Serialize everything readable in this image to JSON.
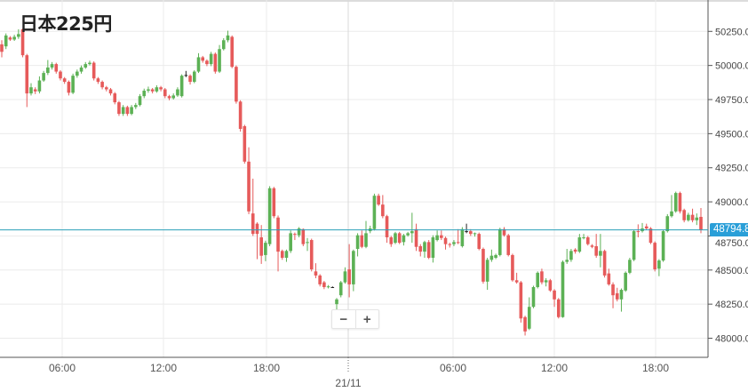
{
  "title": "日本225円",
  "zoom": {
    "minus_label": "−",
    "plus_label": "+"
  },
  "current_price": {
    "label": "48794.8",
    "color": "#2a9fd8"
  },
  "colors": {
    "up": "#5cb155",
    "down": "#e65a5a",
    "grid": "#ebebeb",
    "doji": "#222222"
  },
  "chart_data": {
    "type": "candlestick",
    "title": "日本225円",
    "ylim": [
      47860,
      50480
    ],
    "yticks": [
      48000,
      48250,
      48500,
      48750,
      49000,
      49250,
      49500,
      49750,
      50000,
      50250
    ],
    "ytick_labels": [
      "48000.0",
      "48250.0",
      "48500.0",
      "48750.0",
      "49000.0",
      "49250.0",
      "49500.0",
      "49750.0",
      "50000.0",
      "50250.0"
    ],
    "xtick_labels": [
      "06:00",
      "12:00",
      "18:00",
      "21/11",
      "06:00",
      "12:00",
      "18:00"
    ],
    "grid": true,
    "current_price": 48794.8,
    "candles_ohlc": [
      [
        50155,
        50185,
        50060,
        50100
      ],
      [
        50140,
        50235,
        50120,
        50220
      ],
      [
        50205,
        50215,
        50180,
        50190
      ],
      [
        50190,
        50225,
        50180,
        50210
      ],
      [
        50210,
        50265,
        50195,
        50230
      ],
      [
        50265,
        50270,
        50060,
        50075
      ],
      [
        50075,
        50085,
        49695,
        49795
      ],
      [
        49795,
        49870,
        49780,
        49840
      ],
      [
        49825,
        49840,
        49790,
        49810
      ],
      [
        49810,
        49920,
        49795,
        49890
      ],
      [
        49890,
        49960,
        49880,
        49945
      ],
      [
        49945,
        50040,
        49930,
        49985
      ],
      [
        49985,
        50025,
        49970,
        50010
      ],
      [
        50010,
        50020,
        49940,
        49955
      ],
      [
        49955,
        49965,
        49890,
        49905
      ],
      [
        49905,
        49915,
        49865,
        49880
      ],
      [
        49880,
        49890,
        49780,
        49800
      ],
      [
        49800,
        49940,
        49790,
        49925
      ],
      [
        49925,
        49970,
        49910,
        49955
      ],
      [
        49955,
        50000,
        49940,
        49985
      ],
      [
        49985,
        50025,
        49975,
        50010
      ],
      [
        50010,
        50035,
        50000,
        50020
      ],
      [
        50020,
        50030,
        49890,
        49905
      ],
      [
        49905,
        49915,
        49865,
        49880
      ],
      [
        49880,
        49890,
        49825,
        49840
      ],
      [
        49840,
        49850,
        49810,
        49825
      ],
      [
        49825,
        49835,
        49780,
        49795
      ],
      [
        49795,
        49805,
        49715,
        49730
      ],
      [
        49730,
        49740,
        49630,
        49645
      ],
      [
        49645,
        49710,
        49630,
        49695
      ],
      [
        49695,
        49705,
        49630,
        49645
      ],
      [
        49645,
        49710,
        49635,
        49695
      ],
      [
        49695,
        49725,
        49680,
        49710
      ],
      [
        49710,
        49790,
        49700,
        49775
      ],
      [
        49775,
        49830,
        49760,
        49815
      ],
      [
        49815,
        49845,
        49800,
        49825
      ],
      [
        49825,
        49835,
        49795,
        49810
      ],
      [
        49810,
        49855,
        49800,
        49840
      ],
      [
        49840,
        49850,
        49810,
        49825
      ],
      [
        49825,
        49835,
        49760,
        49775
      ],
      [
        49775,
        49785,
        49745,
        49760
      ],
      [
        49760,
        49795,
        49750,
        49780
      ],
      [
        49780,
        49840,
        49770,
        49825
      ],
      [
        49775,
        49935,
        49765,
        49925
      ],
      [
        49930,
        49960,
        49915,
        49930
      ],
      [
        49925,
        49935,
        49860,
        49880
      ],
      [
        49880,
        49965,
        49870,
        49955
      ],
      [
        49955,
        50090,
        49945,
        50060
      ],
      [
        50060,
        50070,
        50020,
        50035
      ],
      [
        50035,
        50045,
        49995,
        50010
      ],
      [
        50010,
        50100,
        49995,
        50085
      ],
      [
        50085,
        50095,
        49940,
        49955
      ],
      [
        49955,
        50150,
        49945,
        50120
      ],
      [
        50120,
        50200,
        50110,
        50185
      ],
      [
        50185,
        50255,
        50170,
        50220
      ],
      [
        50210,
        50220,
        49980,
        49990
      ],
      [
        49990,
        50000,
        49720,
        49735
      ],
      [
        49735,
        49745,
        49515,
        49535
      ],
      [
        49555,
        49565,
        49280,
        49295
      ],
      [
        49295,
        49400,
        48910,
        48930
      ],
      [
        48915,
        49170,
        48750,
        48765
      ],
      [
        48840,
        48850,
        48580,
        48765
      ],
      [
        48740,
        48830,
        48545,
        48605
      ],
      [
        48610,
        48715,
        48565,
        48700
      ],
      [
        48690,
        49115,
        48675,
        49100
      ],
      [
        49100,
        49110,
        48880,
        48895
      ],
      [
        48885,
        48900,
        48490,
        48635
      ],
      [
        48640,
        48650,
        48575,
        48590
      ],
      [
        48590,
        48650,
        48560,
        48640
      ],
      [
        48640,
        48790,
        48625,
        48770
      ],
      [
        48765,
        48775,
        48720,
        48760
      ],
      [
        48755,
        48815,
        48740,
        48805
      ],
      [
        48800,
        48805,
        48675,
        48690
      ],
      [
        48700,
        48735,
        48640,
        48705
      ],
      [
        48720,
        48730,
        48490,
        48505
      ],
      [
        48490,
        48550,
        48440,
        48460
      ],
      [
        48460,
        48470,
        48380,
        48395
      ],
      [
        48410,
        48420,
        48360,
        48375
      ],
      [
        48375,
        48390,
        48365,
        48380
      ],
      [
        48375,
        48380,
        48370,
        48375
      ],
      [
        48250,
        48295,
        48200,
        48285
      ],
      [
        48315,
        48420,
        48300,
        48410
      ],
      [
        48410,
        48520,
        48400,
        48490
      ],
      [
        48505,
        48690,
        48300,
        48395
      ],
      [
        48395,
        48650,
        48345,
        48640
      ],
      [
        48655,
        48770,
        48600,
        48755
      ],
      [
        48755,
        48790,
        48660,
        48670
      ],
      [
        48670,
        48860,
        48660,
        48770
      ],
      [
        48785,
        48825,
        48770,
        48805
      ],
      [
        48800,
        49060,
        48790,
        49045
      ],
      [
        49045,
        49060,
        48970,
        48980
      ],
      [
        48980,
        49050,
        48880,
        48895
      ],
      [
        48895,
        48905,
        48700,
        48740
      ],
      [
        48740,
        48750,
        48670,
        48690
      ],
      [
        48700,
        48780,
        48690,
        48770
      ],
      [
        48770,
        48780,
        48690,
        48700
      ],
      [
        48705,
        48765,
        48680,
        48755
      ],
      [
        48755,
        48780,
        48745,
        48770
      ],
      [
        48770,
        48920,
        48700,
        48785
      ],
      [
        48800,
        48840,
        48640,
        48670
      ],
      [
        48675,
        48690,
        48600,
        48635
      ],
      [
        48635,
        48715,
        48590,
        48705
      ],
      [
        48705,
        48720,
        48580,
        48590
      ],
      [
        48590,
        48755,
        48555,
        48740
      ],
      [
        48720,
        48790,
        48710,
        48755
      ],
      [
        48755,
        48790,
        48720,
        48735
      ],
      [
        48735,
        48745,
        48650,
        48690
      ],
      [
        48690,
        48700,
        48665,
        48685
      ],
      [
        48690,
        48720,
        48675,
        48705
      ],
      [
        48705,
        48800,
        48690,
        48700
      ],
      [
        48675,
        48815,
        48665,
        48800
      ],
      [
        48785,
        48840,
        48770,
        48785
      ],
      [
        48785,
        48800,
        48750,
        48765
      ],
      [
        48765,
        48775,
        48745,
        48770
      ],
      [
        48765,
        48775,
        48645,
        48655
      ],
      [
        48655,
        48665,
        48400,
        48415
      ],
      [
        48415,
        48590,
        48355,
        48575
      ],
      [
        48575,
        48650,
        48560,
        48605
      ],
      [
        48590,
        48620,
        48580,
        48610
      ],
      [
        48610,
        48810,
        48600,
        48800
      ],
      [
        48800,
        48815,
        48745,
        48755
      ],
      [
        48755,
        48765,
        48600,
        48610
      ],
      [
        48610,
        48620,
        48415,
        48425
      ],
      [
        48425,
        48480,
        48400,
        48410
      ],
      [
        48410,
        48420,
        48115,
        48145
      ],
      [
        48155,
        48165,
        48020,
        48050
      ],
      [
        48070,
        48300,
        48060,
        48230
      ],
      [
        48230,
        48385,
        48220,
        48375
      ],
      [
        48375,
        48490,
        48365,
        48480
      ],
      [
        48490,
        48510,
        48395,
        48410
      ],
      [
        48410,
        48440,
        48380,
        48425
      ],
      [
        48425,
        48435,
        48340,
        48350
      ],
      [
        48350,
        48360,
        48230,
        48285
      ],
      [
        48285,
        48295,
        48145,
        48155
      ],
      [
        48155,
        48570,
        48150,
        48560
      ],
      [
        48560,
        48655,
        48545,
        48575
      ],
      [
        48575,
        48655,
        48560,
        48640
      ],
      [
        48650,
        48660,
        48620,
        48635
      ],
      [
        48635,
        48765,
        48625,
        48740
      ],
      [
        48735,
        48765,
        48725,
        48740
      ],
      [
        48740,
        48750,
        48680,
        48690
      ],
      [
        48680,
        48690,
        48660,
        48670
      ],
      [
        48675,
        48765,
        48590,
        48605
      ],
      [
        48605,
        48765,
        48520,
        48640
      ],
      [
        48640,
        48650,
        48445,
        48460
      ],
      [
        48475,
        48510,
        48385,
        48395
      ],
      [
        48395,
        48410,
        48220,
        48315
      ],
      [
        48330,
        48370,
        48270,
        48285
      ],
      [
        48285,
        48365,
        48195,
        48355
      ],
      [
        48350,
        48490,
        48340,
        48480
      ],
      [
        48480,
        48590,
        48470,
        48575
      ],
      [
        48575,
        48795,
        48565,
        48785
      ],
      [
        48785,
        48835,
        48740,
        48780
      ],
      [
        48785,
        48845,
        48775,
        48805
      ],
      [
        48820,
        48840,
        48795,
        48805
      ],
      [
        48805,
        48815,
        48690,
        48700
      ],
      [
        48700,
        48710,
        48490,
        48505
      ],
      [
        48510,
        48580,
        48455,
        48570
      ],
      [
        48570,
        48795,
        48560,
        48785
      ],
      [
        48785,
        48910,
        48775,
        48895
      ],
      [
        48895,
        49050,
        48885,
        48930
      ],
      [
        48930,
        49075,
        48920,
        49065
      ],
      [
        49065,
        49075,
        48915,
        48930
      ],
      [
        48940,
        48950,
        48850,
        48865
      ],
      [
        48865,
        48920,
        48855,
        48905
      ],
      [
        48905,
        48950,
        48850,
        48865
      ],
      [
        48865,
        48915,
        48830,
        48885
      ],
      [
        48890,
        48955,
        48770,
        48794.8
      ]
    ]
  }
}
